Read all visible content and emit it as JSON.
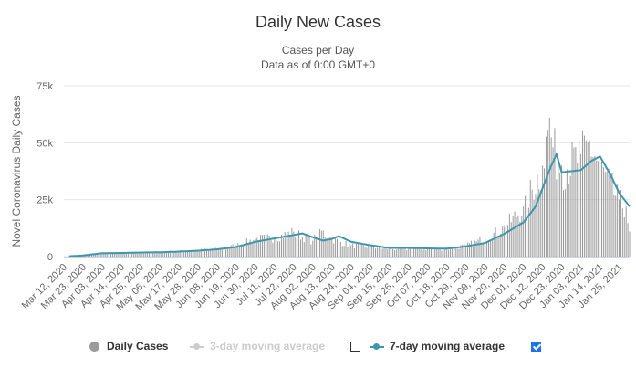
{
  "chart": {
    "title": "Daily New Cases",
    "subtitle_1": "Cases per Day",
    "subtitle_2": "Data as of 0:00 GMT+0"
  },
  "legend": {
    "daily_cases": "Daily Cases",
    "ma3": "3-day moving average",
    "ma7": "7-day moving average",
    "ma3_checked": false,
    "ma7_checked": true
  },
  "colors": {
    "bars": "#9b9b9b",
    "line7": "#3d96ae",
    "grid": "#e6e6e6",
    "disabled": "#cccccc"
  },
  "chart_data": {
    "type": "bar",
    "title": "Daily New Cases",
    "subtitle": "Cases per Day — Data as of 0:00 GMT+0",
    "xlabel": "",
    "ylabel": "Novel Coronavirus Daily Cases",
    "ylim": [
      0,
      75000
    ],
    "yticks": [
      0,
      25000,
      50000,
      75000
    ],
    "ytick_labels": [
      "0",
      "25k",
      "50k",
      "75k"
    ],
    "x_start": "Mar 12, 2020",
    "x_end": "Jan 31, 2021",
    "xtick_labels": [
      "Mar 12, 2020",
      "Mar 23, 2020",
      "Apr 03, 2020",
      "Apr 14, 2020",
      "Apr 25, 2020",
      "May 06, 2020",
      "May 17, 2020",
      "May 28, 2020",
      "Jun 08, 2020",
      "Jun 19, 2020",
      "Jun 30, 2020",
      "Jul 11, 2020",
      "Jul 22, 2020",
      "Aug 02, 2020",
      "Aug 13, 2020",
      "Aug 24, 2020",
      "Sep 04, 2020",
      "Sep 15, 2020",
      "Sep 26, 2020",
      "Oct 07, 2020",
      "Oct 18, 2020",
      "Oct 29, 2020",
      "Nov 09, 2020",
      "Nov 20, 2020",
      "Dec 01, 2020",
      "Dec 12, 2020",
      "Dec 23, 2020",
      "Jan 03, 2021",
      "Jan 14, 2021",
      "Jan 25, 2021"
    ],
    "grid": true,
    "legend_position": "bottom",
    "series": [
      {
        "name": "Daily Cases",
        "type": "bar",
        "points": [
          [
            "Mar 12, 2020",
            0
          ],
          [
            "Mar 23, 2020",
            700
          ],
          [
            "Apr 03, 2020",
            1600
          ],
          [
            "Apr 14, 2020",
            1700
          ],
          [
            "Apr 25, 2020",
            1900
          ],
          [
            "May 06, 2020",
            2000
          ],
          [
            "May 17, 2020",
            2300
          ],
          [
            "May 28, 2020",
            2800
          ],
          [
            "Jun 08, 2020",
            3300
          ],
          [
            "Jun 19, 2020",
            5000
          ],
          [
            "Jun 30, 2020",
            8000
          ],
          [
            "Jul 11, 2020",
            8500
          ],
          [
            "Jul 22, 2020",
            11000
          ],
          [
            "Aug 02, 2020",
            7000
          ],
          [
            "Aug 06, 2020",
            12000
          ],
          [
            "Aug 13, 2020",
            8000
          ],
          [
            "Aug 24, 2020",
            5000
          ],
          [
            "Sep 04, 2020",
            4500
          ],
          [
            "Sep 15, 2020",
            3500
          ],
          [
            "Sep 26, 2020",
            3500
          ],
          [
            "Oct 07, 2020",
            3500
          ],
          [
            "Oct 18, 2020",
            3500
          ],
          [
            "Oct 29, 2020",
            5000
          ],
          [
            "Nov 09, 2020",
            8000
          ],
          [
            "Nov 20, 2020",
            13000
          ],
          [
            "Dec 01, 2020",
            22000
          ],
          [
            "Dec 12, 2020",
            40000
          ],
          [
            "Dec 16, 2020",
            61000
          ],
          [
            "Dec 18, 2020",
            48000
          ],
          [
            "Dec 23, 2020",
            40000
          ],
          [
            "Jan 03, 2021",
            45000
          ],
          [
            "Jan 08, 2021",
            51000
          ],
          [
            "Jan 14, 2021",
            40000
          ],
          [
            "Jan 25, 2021",
            25000
          ],
          [
            "Jan 29, 2021",
            22000
          ],
          [
            "Jan 31, 2021",
            11000
          ]
        ]
      },
      {
        "name": "7-day moving average",
        "type": "line",
        "points": [
          [
            "Mar 12, 2020",
            0
          ],
          [
            "Mar 23, 2020",
            500
          ],
          [
            "Apr 03, 2020",
            1500
          ],
          [
            "Apr 14, 2020",
            1600
          ],
          [
            "Apr 25, 2020",
            1800
          ],
          [
            "May 06, 2020",
            1900
          ],
          [
            "May 17, 2020",
            2200
          ],
          [
            "May 28, 2020",
            2600
          ],
          [
            "Jun 08, 2020",
            3200
          ],
          [
            "Jun 19, 2020",
            4200
          ],
          [
            "Jun 30, 2020",
            6500
          ],
          [
            "Jul 11, 2020",
            8000
          ],
          [
            "Jul 22, 2020",
            9500
          ],
          [
            "Jul 27, 2020",
            10200
          ],
          [
            "Aug 02, 2020",
            8500
          ],
          [
            "Aug 08, 2020",
            7000
          ],
          [
            "Aug 13, 2020",
            7800
          ],
          [
            "Aug 17, 2020",
            9000
          ],
          [
            "Aug 24, 2020",
            6500
          ],
          [
            "Sep 04, 2020",
            5000
          ],
          [
            "Sep 15, 2020",
            3800
          ],
          [
            "Sep 26, 2020",
            3800
          ],
          [
            "Oct 07, 2020",
            3600
          ],
          [
            "Oct 18, 2020",
            3500
          ],
          [
            "Oct 29, 2020",
            4500
          ],
          [
            "Nov 09, 2020",
            6000
          ],
          [
            "Nov 20, 2020",
            10000
          ],
          [
            "Dec 01, 2020",
            15000
          ],
          [
            "Dec 08, 2020",
            22000
          ],
          [
            "Dec 12, 2020",
            30000
          ],
          [
            "Dec 17, 2020",
            40000
          ],
          [
            "Dec 20, 2020",
            45000
          ],
          [
            "Dec 23, 2020",
            37000
          ],
          [
            "Jan 03, 2021",
            38000
          ],
          [
            "Jan 09, 2021",
            42000
          ],
          [
            "Jan 14, 2021",
            44000
          ],
          [
            "Jan 20, 2021",
            36000
          ],
          [
            "Jan 25, 2021",
            28000
          ],
          [
            "Jan 31, 2021",
            22000
          ]
        ]
      }
    ]
  }
}
